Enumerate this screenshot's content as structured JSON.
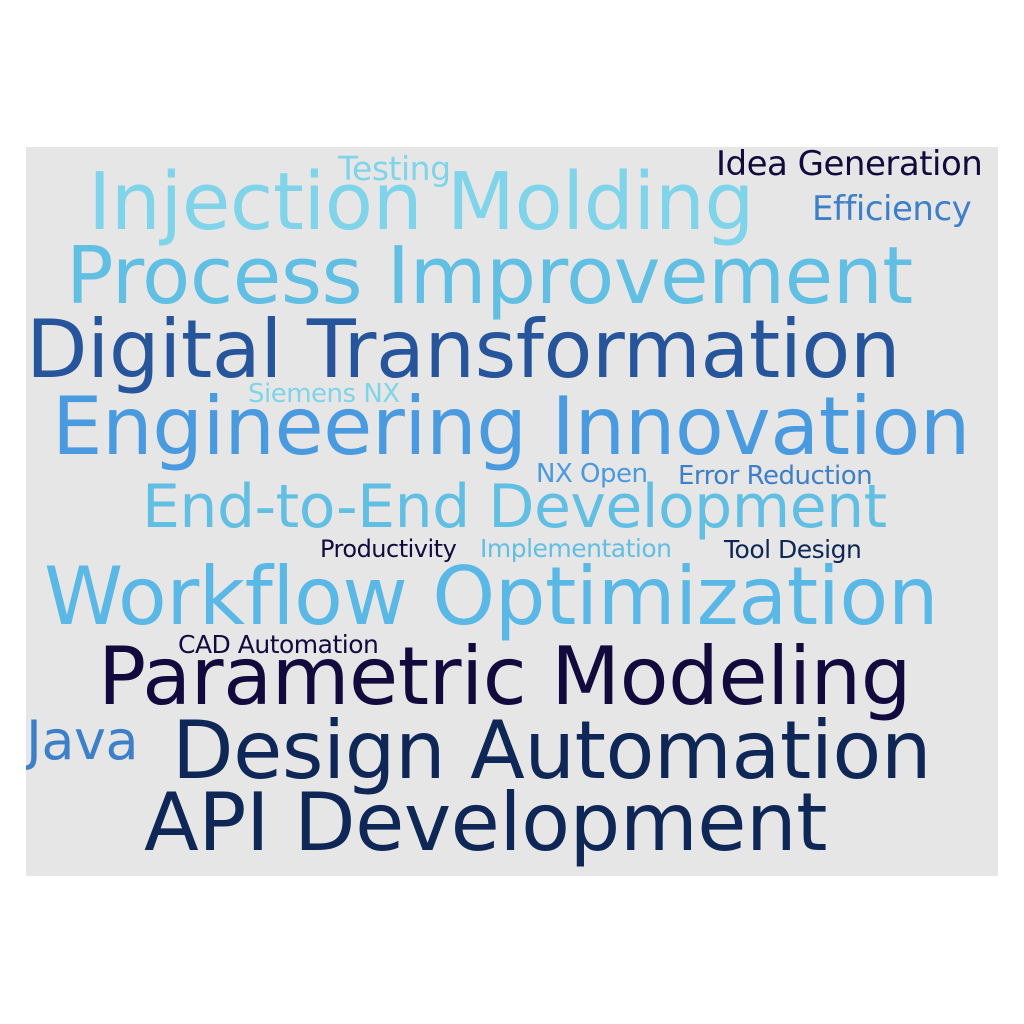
{
  "colors": {
    "background": "#e6e6e6"
  },
  "words": [
    {
      "text": "Testing",
      "color": "#7fd4ea"
    },
    {
      "text": "Idea Generation",
      "color": "#12093d"
    },
    {
      "text": "Injection Molding",
      "color": "#7fd4ea"
    },
    {
      "text": "Efficiency",
      "color": "#3e7fca"
    },
    {
      "text": "Process Improvement",
      "color": "#62bfe4"
    },
    {
      "text": "Digital Transformation",
      "color": "#26559c"
    },
    {
      "text": "Siemens NX",
      "color": "#7fd4ea"
    },
    {
      "text": "Engineering Innovation",
      "color": "#4a9ae0"
    },
    {
      "text": "NX Open",
      "color": "#4a9ae0"
    },
    {
      "text": "Error Reduction",
      "color": "#3e7fca"
    },
    {
      "text": "End-to-End Development",
      "color": "#62bfe4"
    },
    {
      "text": "Productivity",
      "color": "#12093d"
    },
    {
      "text": "Implementation",
      "color": "#62bfe4"
    },
    {
      "text": "Tool Design",
      "color": "#0f2756"
    },
    {
      "text": "Workflow Optimization",
      "color": "#5ab8e6"
    },
    {
      "text": "CAD Automation",
      "color": "#12093d"
    },
    {
      "text": "Parametric Modeling",
      "color": "#12093d"
    },
    {
      "text": "Java",
      "color": "#3e7fca"
    },
    {
      "text": "Design Automation",
      "color": "#0f2756"
    },
    {
      "text": "API Development",
      "color": "#0f2756"
    }
  ]
}
